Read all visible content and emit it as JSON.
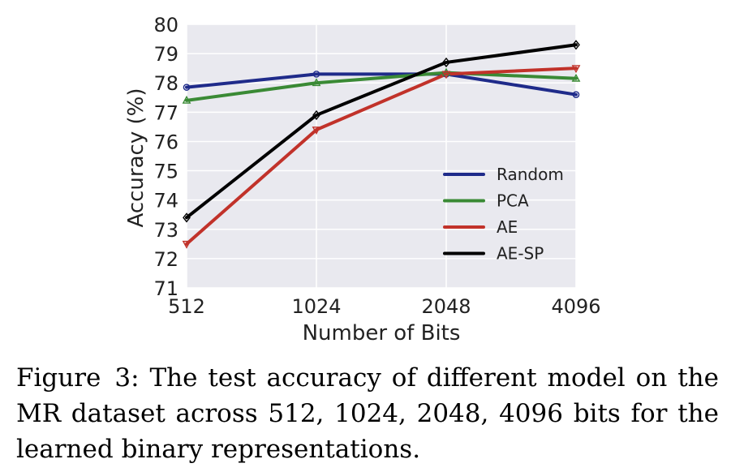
{
  "chart_data": {
    "type": "line",
    "xlabel": "Number of Bits",
    "ylabel": "Accuracy (%)",
    "categories": [
      "512",
      "1024",
      "2048",
      "4096"
    ],
    "ylim": [
      71,
      80
    ],
    "yticks": [
      71,
      72,
      73,
      74,
      75,
      76,
      77,
      78,
      79,
      80
    ],
    "grid": true,
    "legend_position": "lower-right",
    "series": [
      {
        "name": "Random",
        "color": "#1f2b8a",
        "marker": "circle",
        "values": [
          77.85,
          78.3,
          78.3,
          77.6
        ]
      },
      {
        "name": "PCA",
        "color": "#3a8a35",
        "marker": "triangle-up",
        "values": [
          77.4,
          78.0,
          78.35,
          78.15
        ]
      },
      {
        "name": "AE",
        "color": "#c1322a",
        "marker": "triangle-down",
        "values": [
          72.5,
          76.4,
          78.3,
          78.5
        ]
      },
      {
        "name": "AE-SP",
        "color": "#000000",
        "marker": "diamond",
        "values": [
          73.4,
          76.9,
          78.7,
          79.3
        ]
      }
    ]
  },
  "caption": {
    "label": "Figure 3:",
    "text": "The test accuracy of different model on the MR dataset across 512, 1024, 2048, 4096 bits for the learned binary representations."
  }
}
